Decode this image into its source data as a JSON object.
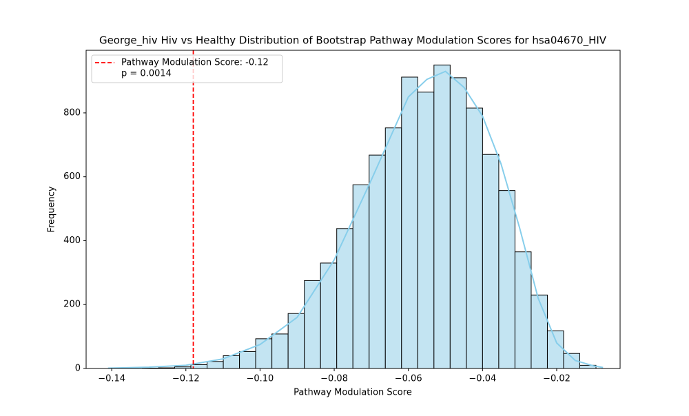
{
  "chart_data": {
    "type": "histogram",
    "title": "George_hiv Hiv vs Healthy Distribution of Bootstrap Pathway Modulation Scores for hsa04670_HIV",
    "x_label": "Pathway Modulation Score",
    "y_label": "Frequency",
    "bins": [
      -0.1405,
      -0.13613,
      -0.13176,
      -0.12739,
      -0.12302,
      -0.11865,
      -0.11428,
      -0.10991,
      -0.10554,
      -0.10117,
      -0.0968,
      -0.09243,
      -0.08806,
      -0.08369,
      -0.07932,
      -0.07495,
      -0.07058,
      -0.06621,
      -0.06184,
      -0.05747,
      -0.0531,
      -0.04873,
      -0.04436,
      -0.03999,
      -0.03562,
      -0.03125,
      -0.02688,
      -0.02251,
      -0.01814,
      -0.01377,
      -0.0094
    ],
    "values": [
      1,
      0,
      1,
      2,
      5,
      12,
      22,
      40,
      53,
      93,
      108,
      172,
      275,
      330,
      438,
      575,
      668,
      753,
      912,
      865,
      950,
      910,
      815,
      670,
      557,
      365,
      230,
      118,
      47,
      10
    ],
    "color": "#c3e4f2",
    "edgecolor": "#000000",
    "kde": {
      "color": "#87ceeb",
      "x": [
        -0.141,
        -0.13,
        -0.12,
        -0.11,
        -0.1,
        -0.09,
        -0.08,
        -0.07,
        -0.065,
        -0.06,
        -0.055,
        -0.05,
        -0.045,
        -0.04,
        -0.035,
        -0.03,
        -0.025,
        -0.02,
        -0.015,
        -0.01,
        -0.0075
      ],
      "y": [
        1,
        4,
        10,
        30,
        75,
        160,
        340,
        590,
        720,
        850,
        905,
        930,
        880,
        790,
        640,
        440,
        220,
        80,
        25,
        8,
        3
      ]
    },
    "vline": {
      "value": -0.118,
      "color": "#ff0000",
      "legend": [
        "Pathway Modulation Score: -0.12",
        "p = 0.0014"
      ]
    },
    "legend_position": "upper left",
    "xlim": [
      -0.1469,
      -0.0029
    ],
    "xticks": [
      {
        "value": -0.14,
        "label": "−0.14"
      },
      {
        "value": -0.12,
        "label": "−0.12"
      },
      {
        "value": -0.1,
        "label": "−0.10"
      },
      {
        "value": -0.08,
        "label": "−0.08"
      },
      {
        "value": -0.06,
        "label": "−0.06"
      },
      {
        "value": -0.04,
        "label": "−0.04"
      },
      {
        "value": -0.02,
        "label": "−0.02"
      }
    ],
    "ylim": [
      0,
      996
    ],
    "yticks": [
      0,
      200,
      400,
      600,
      800
    ]
  }
}
